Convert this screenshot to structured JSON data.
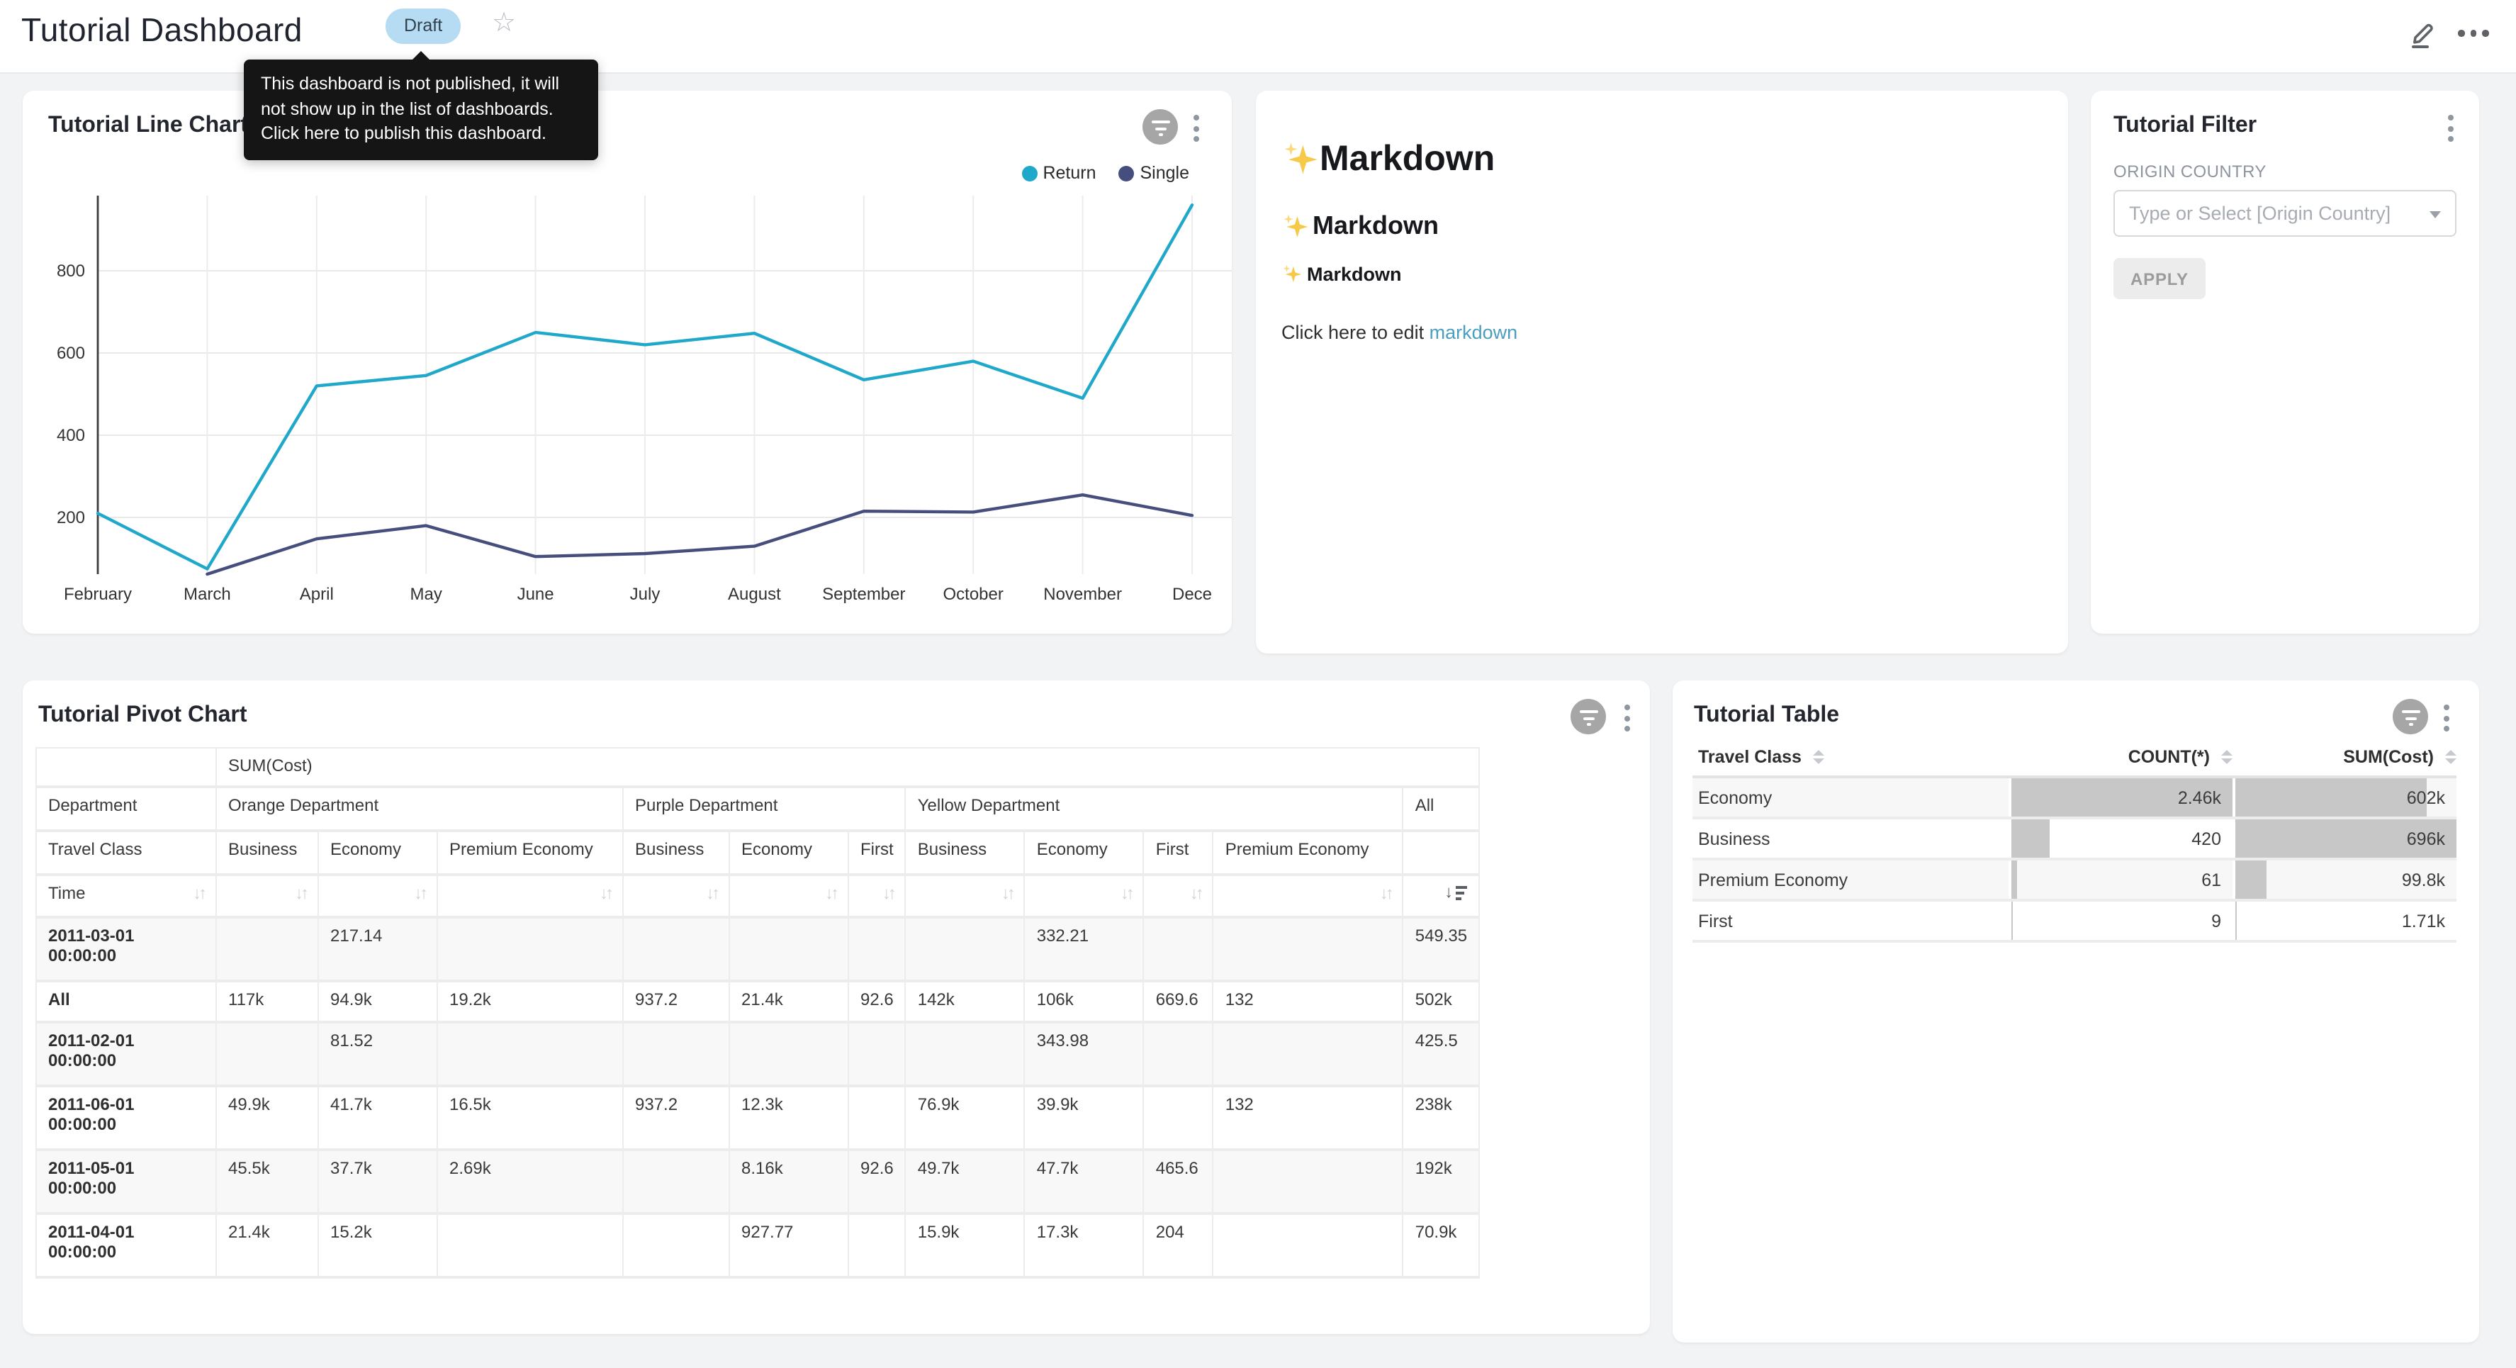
{
  "header": {
    "title": "Tutorial Dashboard",
    "badge": "Draft",
    "star_icon": "star-icon",
    "edit_icon": "edit-pencil-icon",
    "menu_icon": "ellipsis-icon"
  },
  "tooltip": {
    "text": "This dashboard is not published, it will not show up in the list of dashboards. Click here to publish this dashboard."
  },
  "line_chart_panel": {
    "title": "Tutorial Line Chart"
  },
  "chart_data": {
    "type": "line",
    "title": "Tutorial Line Chart",
    "x": [
      "February",
      "March",
      "April",
      "May",
      "June",
      "July",
      "August",
      "September",
      "October",
      "November",
      "Dece"
    ],
    "series": [
      {
        "name": "Return",
        "color": "#1FA8C9",
        "values": [
          210,
          75,
          520,
          545,
          650,
          620,
          648,
          535,
          580,
          490,
          960
        ]
      },
      {
        "name": "Single",
        "color": "#454E7C",
        "values": [
          null,
          58,
          148,
          180,
          105,
          112,
          130,
          215,
          213,
          255,
          205
        ]
      }
    ],
    "yticks": [
      200,
      400,
      600,
      800
    ],
    "grid": true,
    "legend_position": "top-right"
  },
  "markdown_panel": {
    "icon": "sparkles-icon",
    "h1": "Markdown",
    "h2": "Markdown",
    "h3": "Markdown",
    "body_prefix": "Click here to edit ",
    "link_text": "markdown"
  },
  "filter_panel": {
    "title": "Tutorial Filter",
    "field_label": "ORIGIN COUNTRY",
    "select_placeholder": "Type or Select [Origin Country]",
    "apply_label": "APPLY"
  },
  "pivot_panel": {
    "title": "Tutorial Pivot Chart",
    "metric_header": "SUM(Cost)",
    "dept_header": "Department",
    "class_header": "Travel Class",
    "time_header": "Time",
    "all_label": "All",
    "groups": [
      {
        "name": "Orange Department",
        "cols": [
          "Business",
          "Economy",
          "Premium Economy"
        ]
      },
      {
        "name": "Purple Department",
        "cols": [
          "Business",
          "Economy",
          "First"
        ]
      },
      {
        "name": "Yellow Department",
        "cols": [
          "Business",
          "Economy",
          "First",
          "Premium Economy"
        ]
      }
    ],
    "sorted_column": "All",
    "sort_direction": "desc",
    "rows": [
      {
        "label": "2011-03-01 00:00:00",
        "cells": [
          "",
          "217.14",
          "",
          "",
          "",
          "",
          "",
          "332.21",
          "",
          "",
          "549.35"
        ]
      },
      {
        "label": "All",
        "cells": [
          "117k",
          "94.9k",
          "19.2k",
          "937.2",
          "21.4k",
          "92.6",
          "142k",
          "106k",
          "669.6",
          "132",
          "502k"
        ]
      },
      {
        "label": "2011-02-01 00:00:00",
        "cells": [
          "",
          "81.52",
          "",
          "",
          "",
          "",
          "",
          "343.98",
          "",
          "",
          "425.5"
        ]
      },
      {
        "label": "2011-06-01 00:00:00",
        "cells": [
          "49.9k",
          "41.7k",
          "16.5k",
          "937.2",
          "12.3k",
          "",
          "76.9k",
          "39.9k",
          "",
          "132",
          "238k"
        ]
      },
      {
        "label": "2011-05-01 00:00:00",
        "cells": [
          "45.5k",
          "37.7k",
          "2.69k",
          "",
          "8.16k",
          "92.6",
          "49.7k",
          "47.7k",
          "465.6",
          "",
          "192k"
        ]
      },
      {
        "label": "2011-04-01 00:00:00",
        "cells": [
          "21.4k",
          "15.2k",
          "",
          "",
          "927.77",
          "",
          "15.9k",
          "17.3k",
          "204",
          "",
          "70.9k"
        ]
      }
    ]
  },
  "table_panel": {
    "title": "Tutorial Table",
    "columns": [
      "Travel Class",
      "COUNT(*)",
      "SUM(Cost)"
    ],
    "rows": [
      {
        "travel_class": "Economy",
        "count": "2.46k",
        "sum": "602k",
        "count_bar_pct": 100,
        "sum_bar_pct": 86.5
      },
      {
        "travel_class": "Business",
        "count": "420",
        "sum": "696k",
        "count_bar_pct": 17,
        "sum_bar_pct": 100
      },
      {
        "travel_class": "Premium Economy",
        "count": "61",
        "sum": "99.8k",
        "count_bar_pct": 2.5,
        "sum_bar_pct": 14.3
      },
      {
        "travel_class": "First",
        "count": "9",
        "sum": "1.71k",
        "count_bar_pct": 0.4,
        "sum_bar_pct": 0.3
      }
    ]
  },
  "colors": {
    "page_bg": "#f2f3f5",
    "panel_bg": "#ffffff",
    "badge_bg": "#b5dcf2",
    "link": "#4b9ec0",
    "series_return": "#1FA8C9",
    "series_single": "#454E7C",
    "table_bar": "#c7c7c7"
  }
}
